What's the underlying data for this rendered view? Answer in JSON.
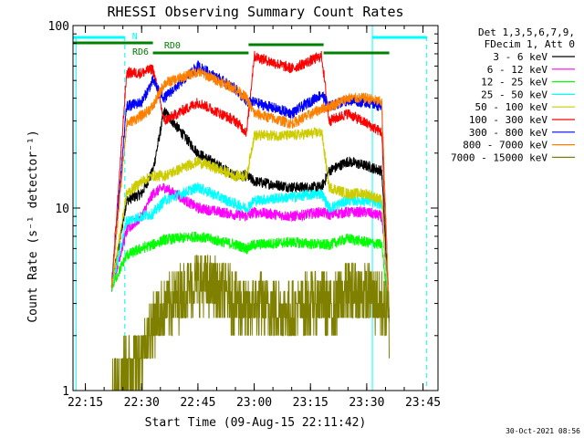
{
  "chart_data": {
    "type": "line",
    "title": "RHESSI Observing Summary Count Rates",
    "xlabel": "Start Time (09-Aug-15 22:11:42)",
    "ylabel": "Count Rate (s⁻¹ detector⁻¹)",
    "yscale": "log",
    "ylim": [
      1,
      100
    ],
    "xlim": [
      "22:11:42",
      "23:49:00"
    ],
    "x_ticks": [
      "22:15",
      "22:30",
      "22:45",
      "23:00",
      "23:15",
      "23:30",
      "23:45"
    ],
    "y_ticks": [
      "1",
      "10",
      "100"
    ],
    "timestamp": "30-Oct-2021 08:56",
    "legend_header": [
      "Det 1,3,5,6,7,9,",
      "FDecim 1, Att 0"
    ],
    "annotations": {
      "night_label": "N",
      "rd0_label": "RD0",
      "rd6_label": "RD6"
    },
    "series": [
      {
        "name": "3 - 6 keV",
        "color": "#000000",
        "x": [
          "22:22",
          "22:26",
          "22:30",
          "22:33",
          "22:36",
          "22:45",
          "22:55",
          "22:58",
          "23:00",
          "23:10",
          "23:18",
          "23:20",
          "23:25",
          "23:30",
          "23:34",
          "23:36"
        ],
        "values": [
          3.7,
          11,
          12,
          16,
          34,
          20,
          15,
          15,
          14,
          13,
          13,
          16,
          18,
          17,
          16,
          2.5
        ]
      },
      {
        "name": "6 - 12 keV",
        "color": "#ff00ff",
        "x": [
          "22:22",
          "22:26",
          "22:30",
          "22:33",
          "22:36",
          "22:45",
          "22:55",
          "22:58",
          "23:00",
          "23:10",
          "23:18",
          "23:20",
          "23:25",
          "23:30",
          "23:34",
          "23:36"
        ],
        "values": [
          3.7,
          7.5,
          9,
          12,
          13,
          10,
          9.2,
          9,
          9.5,
          9,
          9.5,
          9.2,
          9.5,
          9.5,
          9,
          2.5
        ]
      },
      {
        "name": "12 - 25 keV",
        "color": "#00ff00",
        "x": [
          "22:22",
          "22:26",
          "22:30",
          "22:33",
          "22:36",
          "22:45",
          "22:55",
          "22:58",
          "23:00",
          "23:10",
          "23:18",
          "23:20",
          "23:25",
          "23:30",
          "23:34",
          "23:36"
        ],
        "values": [
          3.7,
          5.5,
          6,
          6.3,
          6.7,
          7,
          6.3,
          6,
          6.3,
          6.5,
          6.3,
          6.3,
          6.8,
          6.5,
          6.3,
          2.5
        ]
      },
      {
        "name": "25 - 50 keV",
        "color": "#00ffff",
        "x": [
          "22:22",
          "22:26",
          "22:30",
          "22:33",
          "22:36",
          "22:45",
          "22:55",
          "22:58",
          "23:00",
          "23:10",
          "23:18",
          "23:20",
          "23:25",
          "23:30",
          "23:34",
          "23:36"
        ],
        "values": [
          3.7,
          8.5,
          9,
          9.3,
          11,
          13,
          10.5,
          10,
          11,
          11.5,
          12,
          10,
          11,
          11,
          10.5,
          2.5
        ]
      },
      {
        "name": "50 - 100 keV",
        "color": "#cccc00",
        "x": [
          "22:22",
          "22:26",
          "22:30",
          "22:33",
          "22:36",
          "22:45",
          "22:55",
          "22:58",
          "23:00",
          "23:10",
          "23:18",
          "23:20",
          "23:25",
          "23:30",
          "23:34",
          "23:36"
        ],
        "values": [
          3.7,
          12,
          14,
          15,
          15,
          18,
          15,
          15,
          25,
          25,
          26,
          13,
          12,
          12,
          11,
          2.5
        ]
      },
      {
        "name": "100 - 300 keV",
        "color": "#ff0000",
        "x": [
          "22:22",
          "22:26",
          "22:30",
          "22:33",
          "22:36",
          "22:45",
          "22:55",
          "22:58",
          "23:00",
          "23:10",
          "23:18",
          "23:20",
          "23:25",
          "23:30",
          "23:34",
          "23:36"
        ],
        "values": [
          3.7,
          55,
          55,
          58,
          30,
          38,
          30,
          26,
          68,
          58,
          68,
          30,
          33,
          29,
          26,
          2.5
        ]
      },
      {
        "name": "300 - 800 keV",
        "color": "#0000ff",
        "x": [
          "22:22",
          "22:26",
          "22:30",
          "22:33",
          "22:36",
          "22:45",
          "22:55",
          "22:58",
          "23:00",
          "23:10",
          "23:18",
          "23:20",
          "23:25",
          "23:30",
          "23:34",
          "23:36"
        ],
        "values": [
          3.7,
          36,
          38,
          50,
          40,
          60,
          45,
          38,
          38,
          33,
          42,
          36,
          39,
          38,
          36,
          2.5
        ]
      },
      {
        "name": "800 - 7000 keV",
        "color": "#ff8000",
        "x": [
          "22:22",
          "22:26",
          "22:30",
          "22:33",
          "22:36",
          "22:45",
          "22:55",
          "22:58",
          "23:00",
          "23:10",
          "23:18",
          "23:20",
          "23:25",
          "23:30",
          "23:34",
          "23:36"
        ],
        "values": [
          3.7,
          29,
          32,
          36,
          48,
          56,
          45,
          40,
          33,
          29,
          35,
          36,
          40,
          40,
          38,
          2.5
        ]
      },
      {
        "name": "7000 - 15000 keV",
        "color": "#808000",
        "x": [
          "22:22",
          "22:26",
          "22:30",
          "22:33",
          "22:36",
          "22:45",
          "22:55",
          "22:58",
          "23:00",
          "23:10",
          "23:18",
          "23:20",
          "23:25",
          "23:30",
          "23:34",
          "23:36"
        ],
        "values": [
          1.0,
          1.3,
          1.6,
          2.3,
          2.8,
          4.0,
          3.2,
          2.6,
          3.0,
          2.7,
          3.2,
          2.8,
          3.5,
          3.4,
          3.0,
          2.5
        ]
      }
    ],
    "rd0_bar_color": "#008000",
    "night_bar_color": "#00ffff"
  }
}
